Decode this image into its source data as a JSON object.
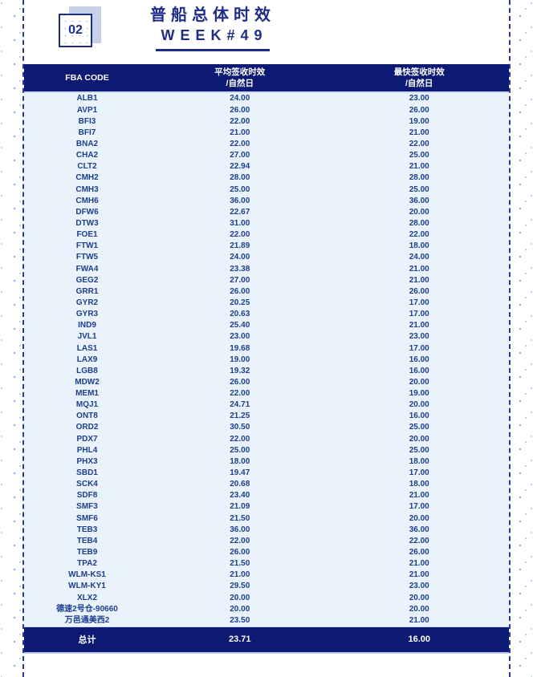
{
  "header": {
    "badge": "02",
    "title": "普船总体时效",
    "subtitle": "WEEK#49"
  },
  "table": {
    "columns": [
      {
        "label": "FBA CODE",
        "sub": ""
      },
      {
        "label": "平均签收时效",
        "sub": "/自然日"
      },
      {
        "label": "最快签收时效",
        "sub": "/自然日"
      }
    ],
    "rows": [
      [
        "ALB1",
        "24.00",
        "23.00"
      ],
      [
        "AVP1",
        "26.00",
        "26.00"
      ],
      [
        "BFI3",
        "22.00",
        "19.00"
      ],
      [
        "BFI7",
        "21.00",
        "21.00"
      ],
      [
        "BNA2",
        "22.00",
        "22.00"
      ],
      [
        "CHA2",
        "27.00",
        "25.00"
      ],
      [
        "CLT2",
        "22.94",
        "21.00"
      ],
      [
        "CMH2",
        "28.00",
        "28.00"
      ],
      [
        "CMH3",
        "25.00",
        "25.00"
      ],
      [
        "CMH6",
        "36.00",
        "36.00"
      ],
      [
        "DFW6",
        "22.67",
        "20.00"
      ],
      [
        "DTW3",
        "31.00",
        "28.00"
      ],
      [
        "FOE1",
        "22.00",
        "22.00"
      ],
      [
        "FTW1",
        "21.89",
        "18.00"
      ],
      [
        "FTW5",
        "24.00",
        "24.00"
      ],
      [
        "FWA4",
        "23.38",
        "21.00"
      ],
      [
        "GEG2",
        "27.00",
        "21.00"
      ],
      [
        "GRR1",
        "26.00",
        "26.00"
      ],
      [
        "GYR2",
        "20.25",
        "17.00"
      ],
      [
        "GYR3",
        "20.63",
        "17.00"
      ],
      [
        "IND9",
        "25.40",
        "21.00"
      ],
      [
        "JVL1",
        "23.00",
        "23.00"
      ],
      [
        "LAS1",
        "19.68",
        "17.00"
      ],
      [
        "LAX9",
        "19.00",
        "16.00"
      ],
      [
        "LGB8",
        "19.32",
        "16.00"
      ],
      [
        "MDW2",
        "26.00",
        "20.00"
      ],
      [
        "MEM1",
        "22.00",
        "19.00"
      ],
      [
        "MQJ1",
        "24.71",
        "20.00"
      ],
      [
        "ONT8",
        "21.25",
        "16.00"
      ],
      [
        "ORD2",
        "30.50",
        "25.00"
      ],
      [
        "PDX7",
        "22.00",
        "20.00"
      ],
      [
        "PHL4",
        "25.00",
        "25.00"
      ],
      [
        "PHX3",
        "18.00",
        "18.00"
      ],
      [
        "SBD1",
        "19.47",
        "17.00"
      ],
      [
        "SCK4",
        "20.68",
        "18.00"
      ],
      [
        "SDF8",
        "23.40",
        "21.00"
      ],
      [
        "SMF3",
        "21.09",
        "17.00"
      ],
      [
        "SMF6",
        "21.50",
        "20.00"
      ],
      [
        "TEB3",
        "36.00",
        "36.00"
      ],
      [
        "TEB4",
        "22.00",
        "22.00"
      ],
      [
        "TEB9",
        "26.00",
        "26.00"
      ],
      [
        "TPA2",
        "21.50",
        "21.00"
      ],
      [
        "WLM-KS1",
        "21.00",
        "21.00"
      ],
      [
        "WLM-KY1",
        "29.50",
        "23.00"
      ],
      [
        "XLX2",
        "20.00",
        "20.00"
      ],
      [
        "德速2号仓-90660",
        "20.00",
        "20.00"
      ],
      [
        "万邑通美西2",
        "23.50",
        "21.00"
      ]
    ],
    "total": {
      "label": "总计",
      "avg": "23.71",
      "fastest": "16.00"
    }
  },
  "colors": {
    "navy": "#2c3a96",
    "navy_bg": "#0d1a74",
    "title_text": "#1e2d87",
    "row_text": "#1c3e8e",
    "row_bg": "#eaf2fb",
    "shadow": "#c7d2e9"
  }
}
